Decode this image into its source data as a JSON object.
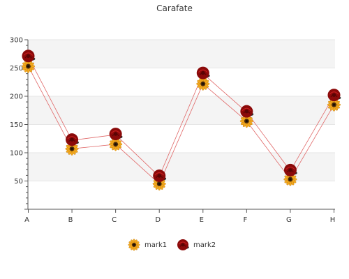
{
  "chart_data": {
    "type": "line",
    "title": "Carafate",
    "xlabel": "",
    "ylabel": "",
    "categories": [
      "A",
      "B",
      "C",
      "D",
      "E",
      "F",
      "G",
      "H"
    ],
    "ylim": [
      0,
      300
    ],
    "yticks": [
      50,
      100,
      150,
      200,
      250,
      300
    ],
    "grid": true,
    "legend_position": "bottom",
    "series": [
      {
        "name": "mark1",
        "values": [
          253,
          107,
          115,
          45,
          222,
          156,
          53,
          185
        ],
        "color": "#e06666",
        "marker": "sunflower-icon"
      },
      {
        "name": "mark2",
        "values": [
          270,
          122,
          132,
          58,
          240,
          172,
          68,
          201
        ],
        "color": "#e06666",
        "marker": "rose-icon"
      }
    ],
    "band_colors": [
      "#f4f4f4",
      "#ffffff"
    ]
  }
}
